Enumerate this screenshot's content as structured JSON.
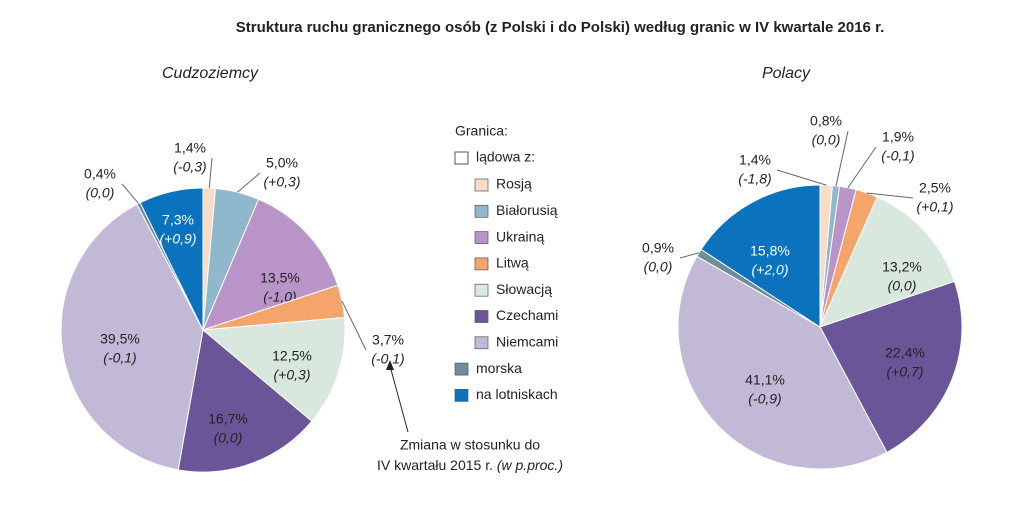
{
  "title": "Struktura ruchu granicznego osób (z Polski i do Polski) według granic w IV kwartale 2016 r.",
  "legend": {
    "title": "Granica:",
    "group": "lądowa z:"
  },
  "annotation": {
    "line1": "Zmiana w stosunku do",
    "line2": "IV kwartału 2015 r.",
    "line2_italic": "(w p.proc.)"
  },
  "chart_data": [
    {
      "type": "pie",
      "title": "Cudzoziemcy",
      "categories": [
        "Rosją",
        "Białorusią",
        "Ukrainą",
        "Litwą",
        "Słowacją",
        "Czechami",
        "Niemcami",
        "morska",
        "na lotniskach"
      ],
      "values": [
        1.4,
        5.0,
        13.5,
        3.7,
        12.5,
        16.7,
        39.5,
        0.4,
        7.3
      ],
      "value_labels": [
        "1,4%",
        "5,0%",
        "13,5%",
        "3,7%",
        "12,5%",
        "16,7%",
        "39,5%",
        "0,4%",
        "7,3%"
      ],
      "change_labels": [
        "(-0,3)",
        "(+0,3)",
        "(-1,0)",
        "(-0,1)",
        "(+0,3)",
        "(0,0)",
        "(-0,1)",
        "(0,0)",
        "(+0,9)"
      ],
      "colors": [
        "#f8dcc8",
        "#8fb8cc",
        "#b894c8",
        "#f5a46c",
        "#d8e8de",
        "#6b5599",
        "#c2b9d6",
        "#6f8c99",
        "#0b72bd"
      ]
    },
    {
      "type": "pie",
      "title": "Polacy",
      "categories": [
        "Rosją",
        "Białorusią",
        "Ukrainą",
        "Litwą",
        "Słowacją",
        "Czechami",
        "Niemcami",
        "morska",
        "na lotniskach"
      ],
      "values": [
        1.4,
        0.8,
        1.9,
        2.5,
        13.2,
        22.4,
        41.1,
        0.9,
        15.8
      ],
      "value_labels": [
        "1,4%",
        "0,8%",
        "1,9%",
        "2,5%",
        "13,2%",
        "22,4%",
        "41,1%",
        "0,9%",
        "15,8%"
      ],
      "change_labels": [
        "(-1,8)",
        "(0,0)",
        "(-0,1)",
        "(+0,1)",
        "(0,0)",
        "(+0,7)",
        "(-0,9)",
        "(0,0)",
        "(+2,0)"
      ],
      "colors": [
        "#f8dcc8",
        "#8fb8cc",
        "#b894c8",
        "#f5a46c",
        "#d8e8de",
        "#6b5599",
        "#c2b9d6",
        "#6f8c99",
        "#0b72bd"
      ]
    }
  ]
}
